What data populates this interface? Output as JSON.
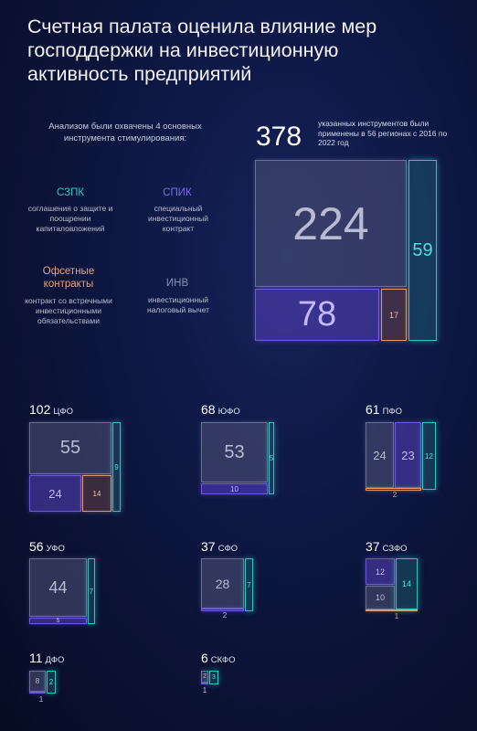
{
  "title": "Счетная палата оценила влияние мер господдержки на инвестиционную активность предприятий",
  "intro": "Анализом были охвачены 4 основных инструмента стимулирования:",
  "instruments": [
    {
      "name": "СЗПК",
      "desc": "соглашения о защите и поощрении капиталовложений",
      "color": "#2fc4c0"
    },
    {
      "name": "СПИК",
      "desc": "специальный инвестиционный контракт",
      "color": "#7e6ae8"
    },
    {
      "name": "Офсетные контракты",
      "desc": "контракт со встречными инвестиционными обязательствами",
      "color": "#e8a27c"
    },
    {
      "name": "ИНВ",
      "desc": "инвестиционный налоговый вычет",
      "color": "#8a8db0"
    }
  ],
  "total": {
    "value": "378",
    "desc": "указанных инструментов были применены в 56 регионах с 2016 по 2022 год"
  },
  "main_chart": {
    "inv": "224",
    "szpk": "59",
    "spik": "78",
    "offset": "17"
  },
  "regions": [
    {
      "count": "102",
      "name": "ЦФО",
      "inv": "55",
      "szpk": "9",
      "spik": "24",
      "offset": "14"
    },
    {
      "count": "68",
      "name": "ЮФО",
      "inv": "53",
      "szpk": "5",
      "spik": "10"
    },
    {
      "count": "61",
      "name": "ПФО",
      "inv": "24",
      "spik": "23",
      "szpk": "12",
      "offset": "2"
    },
    {
      "count": "56",
      "name": "УФО",
      "inv": "44",
      "szpk": "7",
      "spik": "5"
    },
    {
      "count": "37",
      "name": "СФО",
      "inv": "28",
      "szpk": "7",
      "spik": "2"
    },
    {
      "count": "37",
      "name": "СЗФО",
      "spik": "12",
      "inv": "10",
      "szpk": "14",
      "offset": "1"
    },
    {
      "count": "11",
      "name": "ДФО",
      "inv": "8",
      "szpk": "2",
      "spik": "1"
    },
    {
      "count": "6",
      "name": "СКФО",
      "inv": "2",
      "szpk": "3",
      "spik": "1"
    }
  ]
}
